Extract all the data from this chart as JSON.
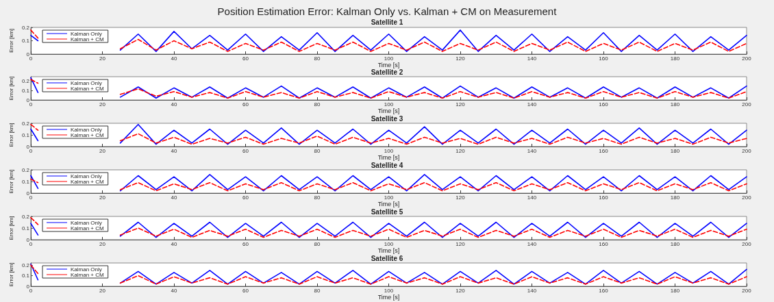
{
  "chart_data": [
    {
      "type": "line",
      "title": "Position Estimation Error: Kalman Only vs. Kalman + CM on Measurement",
      "subtitle": "Satellite 1",
      "xlabel": "Time [s]",
      "ylabel": "Error [km]",
      "xlim": [
        0,
        200
      ],
      "xticks": [
        0,
        20,
        40,
        60,
        80,
        100,
        120,
        140,
        160,
        180,
        200
      ],
      "ylim": [
        0,
        0.2
      ],
      "yticks": [
        0,
        0.1,
        0.2
      ],
      "legend": "top left",
      "grid": false,
      "marker": "none",
      "x": [
        0,
        2,
        12,
        25,
        30,
        35,
        40,
        45,
        50,
        55,
        60,
        65,
        70,
        75,
        80,
        85,
        90,
        95,
        100,
        105,
        110,
        115,
        120,
        125,
        130,
        135,
        140,
        145,
        150,
        155,
        160,
        165,
        170,
        175,
        180,
        185,
        190,
        195,
        200
      ],
      "series": [
        {
          "name": "Kalman Only",
          "color": "#0000ff",
          "line_style": "solid",
          "values": [
            0.14,
            0.1,
            null,
            0.03,
            0.15,
            0.02,
            0.17,
            0.04,
            0.14,
            0.03,
            0.15,
            0.02,
            0.13,
            0.03,
            0.16,
            0.02,
            0.14,
            0.03,
            0.15,
            0.02,
            0.13,
            0.03,
            0.18,
            0.02,
            0.14,
            0.03,
            0.15,
            0.02,
            0.13,
            0.03,
            0.16,
            0.02,
            0.14,
            0.03,
            0.15,
            0.02,
            0.13,
            0.03,
            0.14
          ]
        },
        {
          "name": "Kalman + CM",
          "color": "#ff0000",
          "line_style": "dashed",
          "values": [
            0.18,
            0.12,
            null,
            0.04,
            0.11,
            0.03,
            0.1,
            0.04,
            0.09,
            0.02,
            0.08,
            0.03,
            0.09,
            0.02,
            0.08,
            0.03,
            0.09,
            0.02,
            0.08,
            0.03,
            0.09,
            0.02,
            0.08,
            0.03,
            0.09,
            0.02,
            0.08,
            0.03,
            0.09,
            0.02,
            0.08,
            0.03,
            0.09,
            0.02,
            0.08,
            0.03,
            0.09,
            0.02,
            0.08
          ]
        }
      ]
    },
    {
      "type": "line",
      "title": "Satellite 2",
      "xlabel": "Time [s]",
      "ylabel": "Error [km]",
      "xlim": [
        0,
        200
      ],
      "xticks": [
        0,
        20,
        40,
        60,
        80,
        100,
        120,
        140,
        160,
        180,
        200
      ],
      "ylim": [
        0,
        0.25
      ],
      "yticks": [
        0,
        0.1,
        0.2
      ],
      "legend": "top left",
      "grid": false,
      "marker": "none",
      "x": [
        0,
        2,
        12,
        25,
        30,
        35,
        40,
        45,
        50,
        55,
        60,
        65,
        70,
        75,
        80,
        85,
        90,
        95,
        100,
        105,
        110,
        115,
        120,
        125,
        130,
        135,
        140,
        145,
        150,
        155,
        160,
        165,
        170,
        175,
        180,
        185,
        190,
        195,
        200
      ],
      "series": [
        {
          "name": "Kalman Only",
          "color": "#0000ff",
          "line_style": "solid",
          "values": [
            0.24,
            0.08,
            null,
            0.03,
            0.14,
            0.02,
            0.13,
            0.03,
            0.14,
            0.02,
            0.13,
            0.03,
            0.15,
            0.02,
            0.13,
            0.03,
            0.14,
            0.02,
            0.13,
            0.03,
            0.14,
            0.02,
            0.15,
            0.03,
            0.13,
            0.02,
            0.14,
            0.03,
            0.13,
            0.02,
            0.14,
            0.03,
            0.13,
            0.02,
            0.14,
            0.03,
            0.13,
            0.02,
            0.15
          ]
        },
        {
          "name": "Kalman + CM",
          "color": "#ff0000",
          "line_style": "dashed",
          "values": [
            0.22,
            0.18,
            null,
            0.06,
            0.12,
            0.04,
            0.09,
            0.03,
            0.08,
            0.02,
            0.09,
            0.03,
            0.08,
            0.02,
            0.09,
            0.03,
            0.08,
            0.02,
            0.09,
            0.03,
            0.08,
            0.02,
            0.09,
            0.03,
            0.08,
            0.02,
            0.09,
            0.03,
            0.08,
            0.02,
            0.09,
            0.03,
            0.08,
            0.02,
            0.09,
            0.03,
            0.08,
            0.02,
            0.09
          ]
        }
      ]
    },
    {
      "type": "line",
      "title": "Satellite 3",
      "xlabel": "Time [s]",
      "ylabel": "Error [km]",
      "xlim": [
        0,
        200
      ],
      "xticks": [
        0,
        20,
        40,
        60,
        80,
        100,
        120,
        140,
        160,
        180,
        200
      ],
      "ylim": [
        0,
        0.2
      ],
      "yticks": [
        0,
        0.1,
        0.2
      ],
      "legend": "top left",
      "grid": false,
      "marker": "none",
      "x": [
        0,
        2,
        12,
        25,
        30,
        35,
        40,
        45,
        50,
        55,
        60,
        65,
        70,
        75,
        80,
        85,
        90,
        95,
        100,
        105,
        110,
        115,
        120,
        125,
        130,
        135,
        140,
        145,
        150,
        155,
        160,
        165,
        170,
        175,
        180,
        185,
        190,
        195,
        200
      ],
      "series": [
        {
          "name": "Kalman Only",
          "color": "#0000ff",
          "line_style": "solid",
          "values": [
            0.15,
            0.05,
            null,
            0.03,
            0.19,
            0.02,
            0.14,
            0.03,
            0.15,
            0.02,
            0.14,
            0.03,
            0.16,
            0.02,
            0.14,
            0.03,
            0.15,
            0.02,
            0.14,
            0.03,
            0.17,
            0.02,
            0.14,
            0.03,
            0.15,
            0.02,
            0.14,
            0.03,
            0.15,
            0.02,
            0.14,
            0.03,
            0.16,
            0.02,
            0.14,
            0.03,
            0.15,
            0.02,
            0.14
          ]
        },
        {
          "name": "Kalman + CM",
          "color": "#ff0000",
          "line_style": "dashed",
          "values": [
            0.19,
            0.14,
            null,
            0.05,
            0.11,
            0.03,
            0.08,
            0.02,
            0.07,
            0.03,
            0.08,
            0.02,
            0.07,
            0.03,
            0.09,
            0.02,
            0.08,
            0.03,
            0.07,
            0.02,
            0.08,
            0.03,
            0.07,
            0.02,
            0.08,
            0.03,
            0.07,
            0.02,
            0.08,
            0.03,
            0.07,
            0.02,
            0.08,
            0.03,
            0.07,
            0.02,
            0.08,
            0.03,
            0.07
          ]
        }
      ]
    },
    {
      "type": "line",
      "title": "Satellite 4",
      "xlabel": "Time [s]",
      "ylabel": "Error [km]",
      "xlim": [
        0,
        200
      ],
      "xticks": [
        0,
        20,
        40,
        60,
        80,
        100,
        120,
        140,
        160,
        180,
        200
      ],
      "ylim": [
        0,
        0.2
      ],
      "yticks": [
        0,
        0.1,
        0.2
      ],
      "legend": "top left",
      "grid": false,
      "marker": "none",
      "x": [
        0,
        2,
        12,
        25,
        30,
        35,
        40,
        45,
        50,
        55,
        60,
        65,
        70,
        75,
        80,
        85,
        90,
        95,
        100,
        105,
        110,
        115,
        120,
        125,
        130,
        135,
        140,
        145,
        150,
        155,
        160,
        165,
        170,
        175,
        180,
        185,
        190,
        195,
        200
      ],
      "series": [
        {
          "name": "Kalman Only",
          "color": "#0000ff",
          "line_style": "solid",
          "values": [
            0.15,
            0.04,
            null,
            0.02,
            0.15,
            0.03,
            0.14,
            0.02,
            0.16,
            0.03,
            0.14,
            0.02,
            0.15,
            0.03,
            0.14,
            0.02,
            0.15,
            0.03,
            0.14,
            0.02,
            0.16,
            0.03,
            0.14,
            0.02,
            0.15,
            0.03,
            0.14,
            0.02,
            0.15,
            0.03,
            0.14,
            0.02,
            0.15,
            0.03,
            0.14,
            0.02,
            0.15,
            0.03,
            0.14
          ]
        },
        {
          "name": "Kalman + CM",
          "color": "#ff0000",
          "line_style": "dashed",
          "values": [
            0.12,
            0.09,
            null,
            0.03,
            0.09,
            0.02,
            0.08,
            0.03,
            0.09,
            0.02,
            0.08,
            0.03,
            0.09,
            0.02,
            0.08,
            0.03,
            0.09,
            0.02,
            0.08,
            0.03,
            0.09,
            0.02,
            0.08,
            0.03,
            0.09,
            0.02,
            0.08,
            0.03,
            0.09,
            0.02,
            0.08,
            0.03,
            0.09,
            0.02,
            0.08,
            0.03,
            0.09,
            0.02,
            0.08
          ]
        }
      ]
    },
    {
      "type": "line",
      "title": "Satellite 5",
      "xlabel": "Time [s]",
      "ylabel": "Error [km]",
      "xlim": [
        0,
        200
      ],
      "xticks": [
        0,
        20,
        40,
        60,
        80,
        100,
        120,
        140,
        160,
        180,
        200
      ],
      "ylim": [
        0,
        0.2
      ],
      "yticks": [
        0,
        0.1,
        0.2
      ],
      "legend": "top left",
      "grid": false,
      "marker": "none",
      "x": [
        0,
        2,
        12,
        25,
        30,
        35,
        40,
        45,
        50,
        55,
        60,
        65,
        70,
        75,
        80,
        85,
        90,
        95,
        100,
        105,
        110,
        115,
        120,
        125,
        130,
        135,
        140,
        145,
        150,
        155,
        160,
        165,
        170,
        175,
        180,
        185,
        190,
        195,
        200
      ],
      "series": [
        {
          "name": "Kalman Only",
          "color": "#0000ff",
          "line_style": "solid",
          "values": [
            0.14,
            0.04,
            null,
            0.03,
            0.15,
            0.02,
            0.14,
            0.03,
            0.15,
            0.02,
            0.14,
            0.03,
            0.15,
            0.02,
            0.14,
            0.03,
            0.15,
            0.02,
            0.14,
            0.03,
            0.15,
            0.02,
            0.14,
            0.03,
            0.15,
            0.02,
            0.14,
            0.03,
            0.15,
            0.02,
            0.14,
            0.03,
            0.15,
            0.02,
            0.14,
            0.03,
            0.15,
            0.02,
            0.14
          ]
        },
        {
          "name": "Kalman + CM",
          "color": "#ff0000",
          "line_style": "dashed",
          "values": [
            0.19,
            0.13,
            null,
            0.04,
            0.1,
            0.03,
            0.09,
            0.02,
            0.08,
            0.03,
            0.09,
            0.02,
            0.08,
            0.03,
            0.09,
            0.02,
            0.08,
            0.03,
            0.09,
            0.02,
            0.08,
            0.03,
            0.09,
            0.02,
            0.08,
            0.03,
            0.09,
            0.02,
            0.08,
            0.03,
            0.09,
            0.02,
            0.08,
            0.03,
            0.09,
            0.02,
            0.08,
            0.03,
            0.09
          ]
        }
      ]
    },
    {
      "type": "line",
      "title": "Satellite 6",
      "xlabel": "Time [s]",
      "ylabel": "Error [km]",
      "xlim": [
        0,
        200
      ],
      "xticks": [
        0,
        20,
        40,
        60,
        80,
        100,
        120,
        140,
        160,
        180,
        200
      ],
      "ylim": [
        0,
        0.22
      ],
      "yticks": [
        0,
        0.1,
        0.2
      ],
      "legend": "top left",
      "grid": false,
      "marker": "none",
      "x": [
        0,
        2,
        12,
        25,
        30,
        35,
        40,
        45,
        50,
        55,
        60,
        65,
        70,
        75,
        80,
        85,
        90,
        95,
        100,
        105,
        110,
        115,
        120,
        125,
        130,
        135,
        140,
        145,
        150,
        155,
        160,
        165,
        170,
        175,
        180,
        185,
        190,
        195,
        200
      ],
      "series": [
        {
          "name": "Kalman Only",
          "color": "#0000ff",
          "line_style": "solid",
          "values": [
            0.21,
            0.06,
            null,
            0.03,
            0.14,
            0.02,
            0.13,
            0.03,
            0.15,
            0.02,
            0.14,
            0.03,
            0.13,
            0.02,
            0.14,
            0.03,
            0.15,
            0.02,
            0.14,
            0.03,
            0.13,
            0.02,
            0.14,
            0.03,
            0.15,
            0.02,
            0.14,
            0.03,
            0.13,
            0.02,
            0.15,
            0.03,
            0.14,
            0.02,
            0.13,
            0.03,
            0.14,
            0.02,
            0.16
          ]
        },
        {
          "name": "Kalman + CM",
          "color": "#ff0000",
          "line_style": "dashed",
          "values": [
            0.2,
            0.12,
            null,
            0.03,
            0.1,
            0.02,
            0.09,
            0.03,
            0.08,
            0.02,
            0.09,
            0.03,
            0.08,
            0.02,
            0.09,
            0.03,
            0.08,
            0.02,
            0.09,
            0.03,
            0.08,
            0.02,
            0.09,
            0.03,
            0.08,
            0.02,
            0.09,
            0.03,
            0.08,
            0.02,
            0.09,
            0.03,
            0.08,
            0.02,
            0.09,
            0.03,
            0.08,
            0.02,
            0.09
          ]
        }
      ]
    }
  ]
}
